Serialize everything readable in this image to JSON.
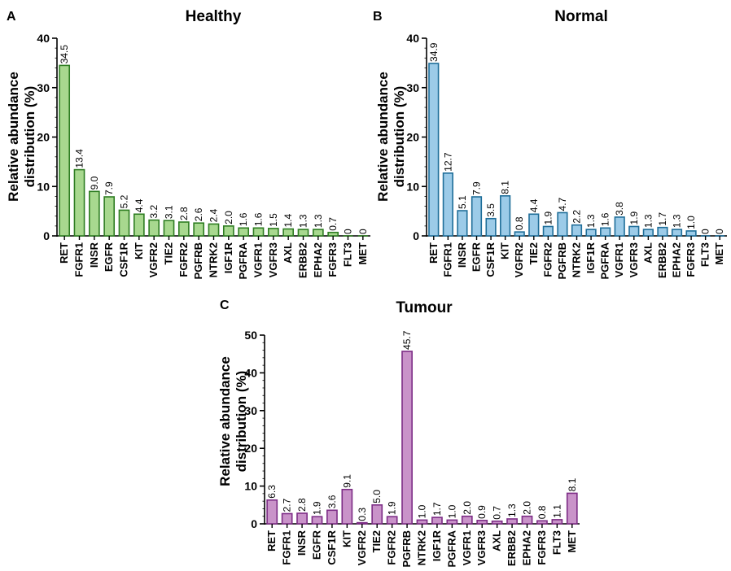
{
  "chart_data": [
    {
      "type": "bar",
      "panel": "A",
      "title": "Healthy",
      "xlabel": "",
      "ylabel": [
        "Relative abundance",
        "distribution (%)"
      ],
      "ylim": [
        0,
        40
      ],
      "yticks": [
        0,
        10,
        20,
        30,
        40
      ],
      "grid": false,
      "colors": {
        "fill": "#a8d88f",
        "stroke": "#2e7d22"
      },
      "categories": [
        "RET",
        "FGFR1",
        "INSR",
        "EGFR",
        "CSF1R",
        "KIT",
        "VGFR2",
        "TIE2",
        "FGFR2",
        "PGFRB",
        "NTRK2",
        "IGF1R",
        "PGFRA",
        "VGFR1",
        "VGFR3",
        "AXL",
        "ERBB2",
        "EPHA2",
        "FGFR3",
        "FLT3",
        "MET"
      ],
      "values": [
        34.5,
        13.4,
        9.0,
        7.9,
        5.2,
        4.4,
        3.2,
        3.1,
        2.8,
        2.6,
        2.4,
        2.0,
        1.6,
        1.6,
        1.5,
        1.4,
        1.3,
        1.3,
        0.7,
        0,
        0
      ],
      "data_labels": [
        "34.5",
        "13.4",
        "9.0",
        "7.9",
        "5.2",
        "4.4",
        "3.2",
        "3.1",
        "2.8",
        "2.6",
        "2.4",
        "2.0",
        "1.6",
        "1.6",
        "1.5",
        "1.4",
        "1.3",
        "1.3",
        "0.7",
        "0",
        "0"
      ]
    },
    {
      "type": "bar",
      "panel": "B",
      "title": "Normal",
      "xlabel": "",
      "ylabel": [
        "Relative abundance",
        "distribution (%)"
      ],
      "ylim": [
        0,
        40
      ],
      "yticks": [
        0,
        10,
        20,
        30,
        40
      ],
      "grid": false,
      "colors": {
        "fill": "#9ccbe8",
        "stroke": "#1f6e99"
      },
      "categories": [
        "RET",
        "FGFR1",
        "INSR",
        "EGFR",
        "CSF1R",
        "KIT",
        "VGFR2",
        "TIE2",
        "FGFR2",
        "PGFRB",
        "NTRK2",
        "IGF1R",
        "PGFRA",
        "VGFR1",
        "VGFR3",
        "AXL",
        "ERBB2",
        "EPHA2",
        "FGFR3",
        "FLT3",
        "MET"
      ],
      "values": [
        34.9,
        12.7,
        5.1,
        7.9,
        3.5,
        8.1,
        0.8,
        4.4,
        1.9,
        4.7,
        2.2,
        1.3,
        1.6,
        3.8,
        1.9,
        1.3,
        1.7,
        1.3,
        1.0,
        0,
        0
      ],
      "data_labels": [
        "34.9",
        "12.7",
        "5.1",
        "7.9",
        "3.5",
        "8.1",
        "0.8",
        "4.4",
        "1.9",
        "4.7",
        "2.2",
        "1.3",
        "1.6",
        "3.8",
        "1.9",
        "1.3",
        "1.7",
        "1.3",
        "1.0",
        "0",
        "0"
      ]
    },
    {
      "type": "bar",
      "panel": "C",
      "title": "Tumour",
      "xlabel": "",
      "ylabel": [
        "Relative abundance",
        "distribution (%)"
      ],
      "ylim": [
        0,
        50
      ],
      "yticks": [
        0,
        10,
        20,
        30,
        40,
        50
      ],
      "grid": false,
      "colors": {
        "fill": "#c993c9",
        "stroke": "#7d2d86"
      },
      "categories": [
        "RET",
        "FGFR1",
        "INSR",
        "EGFR",
        "CSF1R",
        "KIT",
        "VGFR2",
        "TIE2",
        "FGFR2",
        "PGFRB",
        "NTRK2",
        "IGF1R",
        "PGFRA",
        "VGFR1",
        "VGFR3",
        "AXL",
        "ERBB2",
        "EPHA2",
        "FGFR3",
        "FLT3",
        "MET"
      ],
      "values": [
        6.3,
        2.7,
        2.8,
        1.9,
        3.6,
        9.1,
        0.3,
        5.0,
        1.9,
        45.7,
        1.0,
        1.7,
        1.0,
        2.0,
        0.9,
        0.7,
        1.3,
        2.0,
        0.8,
        1.1,
        8.1
      ],
      "data_labels": [
        "6.3",
        "2.7",
        "2.8",
        "1.9",
        "3.6",
        "9.1",
        "0.3",
        "5.0",
        "1.9",
        "45.7",
        "1.0",
        "1.7",
        "1.0",
        "2.0",
        "0.9",
        "0.7",
        "1.3",
        "2.0",
        "0.8",
        "1.1",
        "8.1"
      ]
    }
  ]
}
